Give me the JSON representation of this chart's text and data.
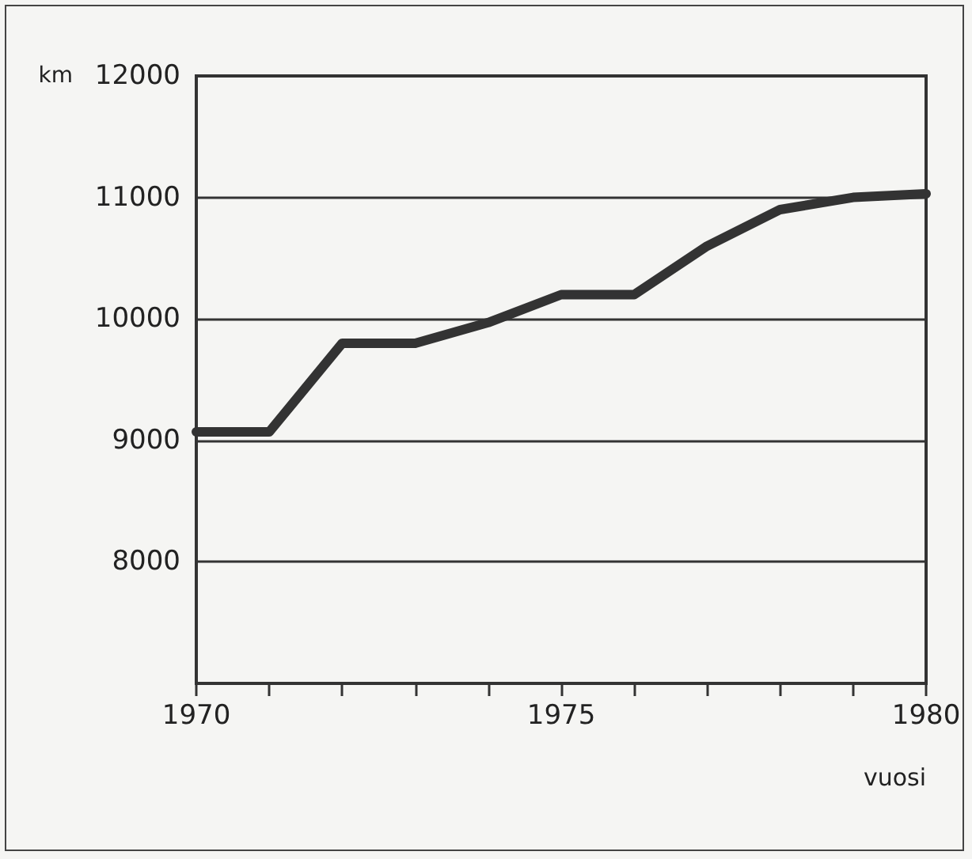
{
  "chart_data": {
    "type": "line",
    "ylabel": "km",
    "xlabel": "vuosi",
    "x": [
      1970,
      1971,
      1972,
      1973,
      1974,
      1975,
      1976,
      1977,
      1978,
      1979,
      1980
    ],
    "series": [
      {
        "color": "#333333",
        "values": [
          9070,
          9070,
          9800,
          9800,
          9970,
          10200,
          10200,
          10600,
          10900,
          11000,
          11030
        ]
      }
    ],
    "xlim": [
      1970,
      1980
    ],
    "xticks": [
      1970,
      1975,
      1980
    ],
    "ylim": [
      7000,
      12000
    ],
    "yticks": [
      8000,
      9000,
      10000,
      11000,
      12000
    ],
    "grid": "y",
    "marker": "none",
    "line_style": "solid"
  }
}
